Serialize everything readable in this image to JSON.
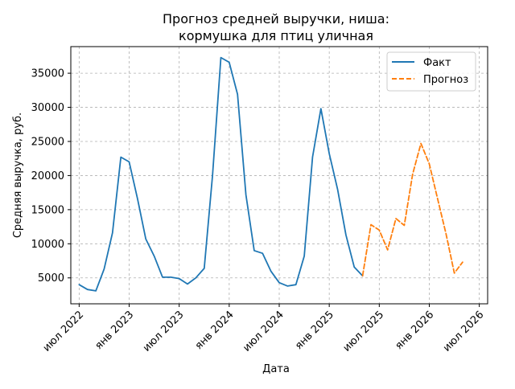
{
  "chart_data": {
    "type": "line",
    "title_lines": [
      "Прогноз средней выручки, ниша:",
      "кормушка для птиц уличная"
    ],
    "xlabel": "Дата",
    "ylabel": "Средняя выручка, руб.",
    "x_ticks": [
      "2022-07",
      "2023-01",
      "2023-07",
      "2024-01",
      "2024-07",
      "2025-01",
      "2025-07",
      "2026-01",
      "2026-07"
    ],
    "x_tick_labels": [
      "июл 2022",
      "янв 2023",
      "июл 2023",
      "янв 2024",
      "июл 2024",
      "янв 2025",
      "июл 2025",
      "янв 2026",
      "июл 2026"
    ],
    "xlim": [
      "2022-06",
      "2026-08"
    ],
    "y_ticks": [
      5000,
      10000,
      15000,
      20000,
      25000,
      30000,
      35000
    ],
    "y_tick_labels": [
      "5000",
      "10000",
      "15000",
      "20000",
      "25000",
      "30000",
      "35000"
    ],
    "ylim": [
      1200,
      38900
    ],
    "grid": true,
    "legend_position": "top-right",
    "series": [
      {
        "name": "Факт",
        "color": "#1f77b4",
        "style": "solid",
        "points": [
          [
            "2022-07",
            4000
          ],
          [
            "2022-08",
            3300
          ],
          [
            "2022-09",
            3100
          ],
          [
            "2022-10",
            6300
          ],
          [
            "2022-11",
            11600
          ],
          [
            "2022-12",
            22700
          ],
          [
            "2023-01",
            22000
          ],
          [
            "2023-02",
            16600
          ],
          [
            "2023-03",
            10700
          ],
          [
            "2023-04",
            8200
          ],
          [
            "2023-05",
            5100
          ],
          [
            "2023-06",
            5100
          ],
          [
            "2023-07",
            4900
          ],
          [
            "2023-08",
            4100
          ],
          [
            "2023-09",
            5000
          ],
          [
            "2023-10",
            6400
          ],
          [
            "2023-11",
            20000
          ],
          [
            "2023-12",
            37300
          ],
          [
            "2024-01",
            36600
          ],
          [
            "2024-02",
            31900
          ],
          [
            "2024-03",
            17200
          ],
          [
            "2024-04",
            9000
          ],
          [
            "2024-05",
            8600
          ],
          [
            "2024-06",
            6000
          ],
          [
            "2024-07",
            4300
          ],
          [
            "2024-08",
            3800
          ],
          [
            "2024-09",
            4000
          ],
          [
            "2024-10",
            8200
          ],
          [
            "2024-11",
            22700
          ],
          [
            "2024-12",
            29800
          ],
          [
            "2025-01",
            23200
          ],
          [
            "2025-02",
            18000
          ],
          [
            "2025-03",
            11300
          ],
          [
            "2025-04",
            6600
          ],
          [
            "2025-05",
            5300
          ]
        ]
      },
      {
        "name": "Прогноз",
        "color": "#ff7f0e",
        "style": "dashed",
        "points": [
          [
            "2025-05",
            5300
          ],
          [
            "2025-06",
            12800
          ],
          [
            "2025-07",
            12000
          ],
          [
            "2025-08",
            9100
          ],
          [
            "2025-09",
            13700
          ],
          [
            "2025-10",
            12700
          ],
          [
            "2025-11",
            20200
          ],
          [
            "2025-12",
            24700
          ],
          [
            "2026-01",
            21700
          ],
          [
            "2026-02",
            16600
          ],
          [
            "2026-03",
            11500
          ],
          [
            "2026-04",
            5700
          ],
          [
            "2026-05",
            7300
          ]
        ]
      }
    ]
  }
}
